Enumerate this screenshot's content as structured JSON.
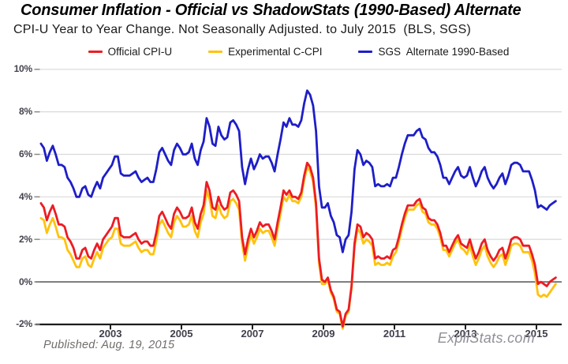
{
  "header": {
    "title": "Consumer Inflation - Official vs ShadowStats (1990-Based) Alternate",
    "subtitle": "CPI-U Year to Year Change. Not Seasonally Adjusted. to July 2015  (BLS, SGS)"
  },
  "legend": {
    "items": [
      {
        "label": "Official CPI-U",
        "color": "#ed1c24"
      },
      {
        "label": "Experimental C-CPI",
        "color": "#ffc20e"
      },
      {
        "label": "SGS  Alternate 1990-Based",
        "color": "#1e1ec8"
      }
    ]
  },
  "footer": {
    "published": "Published: Aug. 19, 2015",
    "brand": "ExpliStats.com"
  },
  "chart_data": {
    "type": "line",
    "title": "Consumer Inflation - Official vs ShadowStats (1990-Based) Alternate",
    "subtitle": "CPI-U Year to Year Change. Not Seasonally Adjusted. to July 2015  (BLS, SGS)",
    "x_unit": "month",
    "x_start": "2001-01",
    "x_end": "2015-07",
    "xlim": [
      2001.0,
      2015.75
    ],
    "ylim": [
      -2,
      10
    ],
    "grid": "horizontal",
    "gridline_color": "#d9d9d9",
    "zero_line_color": "#7f7f7f",
    "axis_color": "#1c1c1c",
    "x_ticks": [
      {
        "year": 2003,
        "label": "2003"
      },
      {
        "year": 2005,
        "label": "2005"
      },
      {
        "year": 2007,
        "label": "2007"
      },
      {
        "year": 2009,
        "label": "2009"
      },
      {
        "year": 2011,
        "label": "2011"
      },
      {
        "year": 2013,
        "label": "2013"
      },
      {
        "year": 2015,
        "label": "2015"
      }
    ],
    "y_ticks": [
      {
        "value": 10,
        "label": "10%"
      },
      {
        "value": 8,
        "label": "8%"
      },
      {
        "value": 6,
        "label": "6%"
      },
      {
        "value": 4,
        "label": "4%"
      },
      {
        "value": 2,
        "label": "2%"
      },
      {
        "value": 0,
        "label": "0%"
      },
      {
        "value": -2,
        "label": "-2%"
      }
    ],
    "legend_position": "top",
    "series": [
      {
        "name": "Official CPI-U",
        "color": "#ed1c24",
        "values": [
          3.7,
          3.5,
          2.9,
          3.3,
          3.6,
          3.2,
          2.7,
          2.7,
          2.6,
          2.1,
          1.9,
          1.6,
          1.1,
          1.1,
          1.5,
          1.6,
          1.2,
          1.1,
          1.5,
          1.8,
          1.5,
          2.0,
          2.2,
          2.4,
          2.6,
          3.0,
          3.0,
          2.2,
          2.1,
          2.1,
          2.1,
          2.2,
          2.3,
          2.0,
          1.8,
          1.9,
          1.9,
          1.7,
          1.7,
          2.3,
          3.1,
          3.3,
          3.0,
          2.7,
          2.5,
          3.2,
          3.5,
          3.3,
          3.0,
          3.0,
          3.1,
          3.5,
          2.8,
          2.5,
          3.2,
          3.6,
          4.7,
          4.3,
          3.5,
          3.4,
          4.0,
          3.6,
          3.4,
          3.5,
          4.2,
          4.3,
          4.1,
          3.8,
          2.1,
          1.3,
          2.0,
          2.5,
          2.1,
          2.4,
          2.8,
          2.6,
          2.7,
          2.7,
          2.4,
          2.0,
          2.8,
          3.5,
          4.3,
          4.1,
          4.3,
          4.0,
          4.0,
          3.9,
          4.2,
          5.0,
          5.6,
          5.4,
          4.9,
          3.7,
          1.1,
          0.1,
          0.0,
          0.2,
          -0.4,
          -0.7,
          -1.3,
          -1.4,
          -2.1,
          -1.5,
          -1.3,
          -0.2,
          1.8,
          2.7,
          2.6,
          2.1,
          2.3,
          2.2,
          2.0,
          1.1,
          1.2,
          1.1,
          1.1,
          1.2,
          1.1,
          1.5,
          1.6,
          2.1,
          2.7,
          3.2,
          3.6,
          3.6,
          3.6,
          3.8,
          3.9,
          3.5,
          3.4,
          3.0,
          2.9,
          2.9,
          2.7,
          2.3,
          1.7,
          1.7,
          1.4,
          1.7,
          2.0,
          2.2,
          1.8,
          1.7,
          1.6,
          2.0,
          1.5,
          1.1,
          1.4,
          1.8,
          2.0,
          1.5,
          1.2,
          1.0,
          1.2,
          1.5,
          1.6,
          1.1,
          1.5,
          2.0,
          2.1,
          2.1,
          2.0,
          1.7,
          1.7,
          1.7,
          1.3,
          0.8,
          -0.1,
          0.0,
          -0.1,
          -0.2,
          0.0,
          0.1,
          0.2
        ]
      },
      {
        "name": "Experimental C-CPI",
        "color": "#ffc20e",
        "values": [
          3.0,
          2.9,
          2.3,
          2.7,
          3.0,
          2.6,
          2.1,
          2.1,
          2.0,
          1.5,
          1.3,
          1.0,
          0.7,
          0.7,
          1.1,
          1.2,
          0.8,
          0.7,
          1.1,
          1.4,
          1.1,
          1.6,
          1.8,
          2.0,
          2.1,
          2.5,
          2.5,
          1.8,
          1.7,
          1.7,
          1.7,
          1.8,
          1.9,
          1.6,
          1.4,
          1.5,
          1.5,
          1.3,
          1.3,
          1.9,
          2.7,
          2.9,
          2.6,
          2.3,
          2.1,
          2.8,
          3.1,
          2.9,
          2.6,
          2.6,
          2.7,
          3.1,
          2.4,
          2.1,
          2.8,
          3.2,
          4.3,
          3.9,
          3.1,
          3.0,
          3.6,
          3.2,
          3.0,
          3.1,
          3.8,
          3.9,
          3.7,
          3.4,
          1.8,
          1.0,
          1.7,
          2.2,
          1.8,
          2.1,
          2.5,
          2.3,
          2.4,
          2.4,
          2.1,
          1.7,
          2.5,
          3.2,
          4.0,
          3.8,
          4.1,
          3.8,
          3.8,
          3.7,
          4.0,
          4.8,
          5.4,
          5.2,
          4.7,
          3.5,
          0.9,
          -0.1,
          -0.1,
          0.1,
          -0.5,
          -0.8,
          -1.4,
          -1.5,
          -2.2,
          -1.6,
          -1.4,
          -0.3,
          1.6,
          2.5,
          2.3,
          1.8,
          2.0,
          1.9,
          1.7,
          0.8,
          0.9,
          0.8,
          0.8,
          0.9,
          0.8,
          1.2,
          1.4,
          1.9,
          2.5,
          3.0,
          3.4,
          3.4,
          3.4,
          3.6,
          3.7,
          3.3,
          3.2,
          2.8,
          2.7,
          2.7,
          2.5,
          2.1,
          1.5,
          1.5,
          1.2,
          1.5,
          1.8,
          2.0,
          1.6,
          1.5,
          1.3,
          1.7,
          1.2,
          0.8,
          1.1,
          1.5,
          1.7,
          1.2,
          0.9,
          0.7,
          0.9,
          1.2,
          1.3,
          0.8,
          1.2,
          1.7,
          1.8,
          1.8,
          1.7,
          1.4,
          1.4,
          1.4,
          1.0,
          0.4,
          -0.6,
          -0.7,
          -0.6,
          -0.7,
          -0.5,
          -0.3,
          -0.1
        ]
      },
      {
        "name": "SGS Alternate 1990-Based",
        "color": "#1e1ec8",
        "values": [
          6.5,
          6.3,
          5.7,
          6.1,
          6.4,
          6.0,
          5.5,
          5.5,
          5.4,
          4.9,
          4.7,
          4.4,
          4.0,
          4.0,
          4.4,
          4.5,
          4.1,
          4.0,
          4.4,
          4.7,
          4.4,
          4.9,
          5.1,
          5.3,
          5.5,
          5.9,
          5.9,
          5.1,
          5.0,
          5.0,
          5.0,
          5.1,
          5.2,
          4.9,
          4.7,
          4.8,
          4.9,
          4.7,
          4.7,
          5.3,
          6.1,
          6.3,
          6.0,
          5.7,
          5.5,
          6.2,
          6.5,
          6.3,
          6.0,
          6.0,
          6.1,
          6.5,
          5.8,
          5.5,
          6.2,
          6.6,
          7.7,
          7.3,
          6.5,
          6.4,
          7.3,
          6.9,
          6.7,
          6.8,
          7.5,
          7.6,
          7.4,
          7.1,
          5.4,
          4.6,
          5.3,
          5.8,
          5.3,
          5.6,
          6.0,
          5.8,
          5.9,
          5.9,
          5.6,
          5.2,
          6.0,
          6.7,
          7.5,
          7.3,
          7.7,
          7.4,
          7.4,
          7.3,
          7.6,
          8.4,
          9.0,
          8.8,
          8.3,
          7.1,
          4.5,
          3.5,
          3.5,
          3.7,
          3.1,
          2.8,
          2.2,
          2.1,
          1.4,
          2.0,
          2.2,
          3.3,
          5.3,
          6.2,
          6.0,
          5.5,
          5.7,
          5.6,
          5.4,
          4.5,
          4.6,
          4.5,
          4.5,
          4.6,
          4.5,
          4.9,
          4.9,
          5.4,
          6.0,
          6.5,
          6.9,
          6.9,
          6.9,
          7.1,
          7.2,
          6.8,
          6.7,
          6.3,
          6.1,
          6.1,
          5.9,
          5.5,
          4.9,
          4.9,
          4.6,
          4.9,
          5.2,
          5.4,
          5.0,
          4.9,
          5.0,
          5.4,
          4.9,
          4.5,
          4.8,
          5.2,
          5.4,
          4.9,
          4.6,
          4.4,
          4.6,
          4.9,
          5.1,
          4.6,
          5.0,
          5.5,
          5.6,
          5.6,
          5.5,
          5.2,
          5.2,
          5.2,
          4.8,
          4.3,
          3.5,
          3.6,
          3.5,
          3.4,
          3.6,
          3.7,
          3.8
        ]
      }
    ]
  }
}
